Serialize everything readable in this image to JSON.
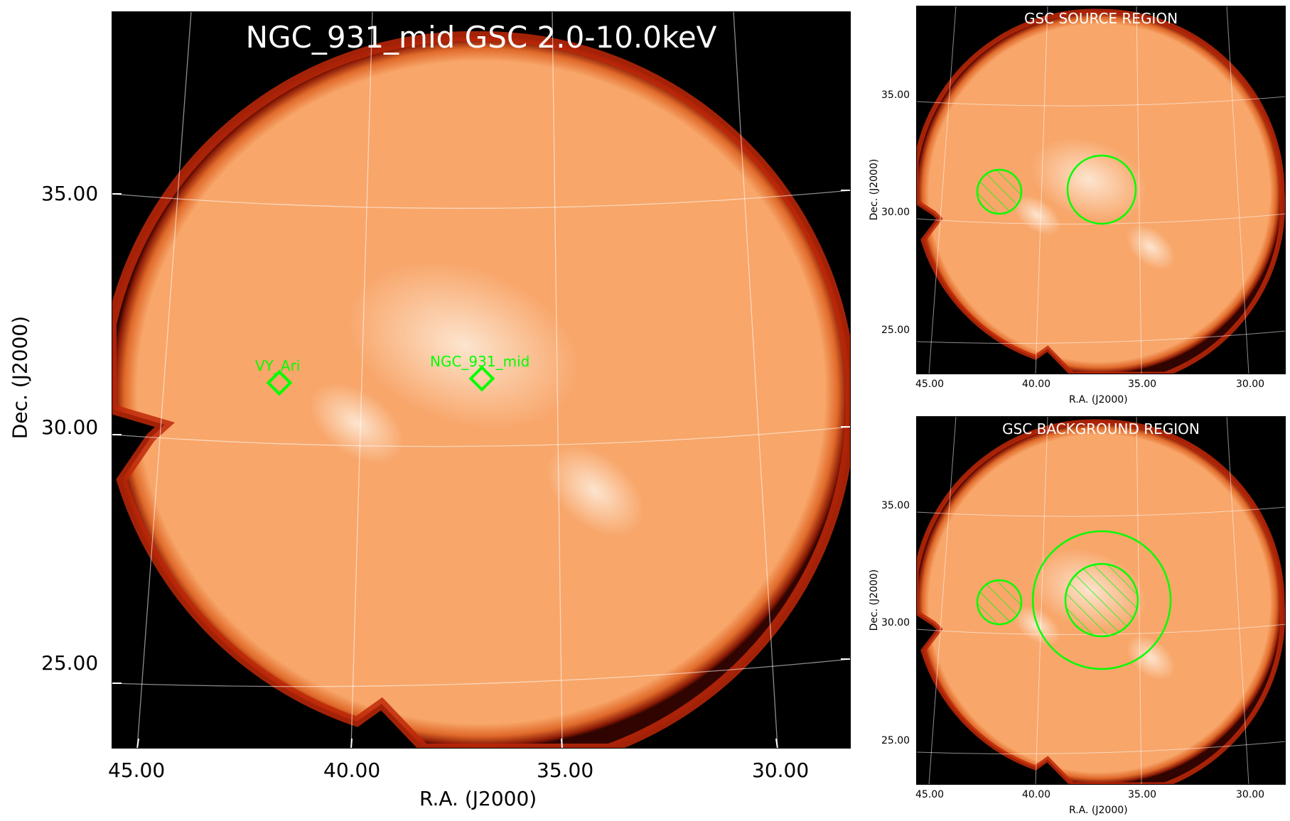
{
  "main": {
    "title": "NGC_931_mid GSC 2.0-10.0keV",
    "xlabel": "R.A. (J2000)",
    "ylabel": "Dec. (J2000)",
    "xticks": [
      "45.00",
      "40.00",
      "35.00",
      "30.00"
    ],
    "yticks": [
      "35.00",
      "30.00",
      "25.00"
    ],
    "sources": [
      {
        "name": "VY_Ari"
      },
      {
        "name": "NGC_931_mid"
      }
    ]
  },
  "source_panel": {
    "title": "GSC SOURCE REGION",
    "xlabel": "R.A. (J2000)",
    "ylabel": "Dec. (J2000)",
    "xticks": [
      "45.00",
      "40.00",
      "35.00",
      "30.00"
    ],
    "yticks": [
      "35.00",
      "30.00",
      "25.00"
    ]
  },
  "background_panel": {
    "title": "GSC BACKGROUND REGION",
    "xlabel": "R.A. (J2000)",
    "ylabel": "Dec. (J2000)",
    "xticks": [
      "45.00",
      "40.00",
      "35.00",
      "30.00"
    ],
    "yticks": [
      "35.00",
      "30.00",
      "25.00"
    ]
  },
  "colors": {
    "image": "#f8a66a",
    "glow": "#fde4cc",
    "edge": "#b8250a",
    "region": "#00ff00",
    "grid": "#ffffff"
  }
}
